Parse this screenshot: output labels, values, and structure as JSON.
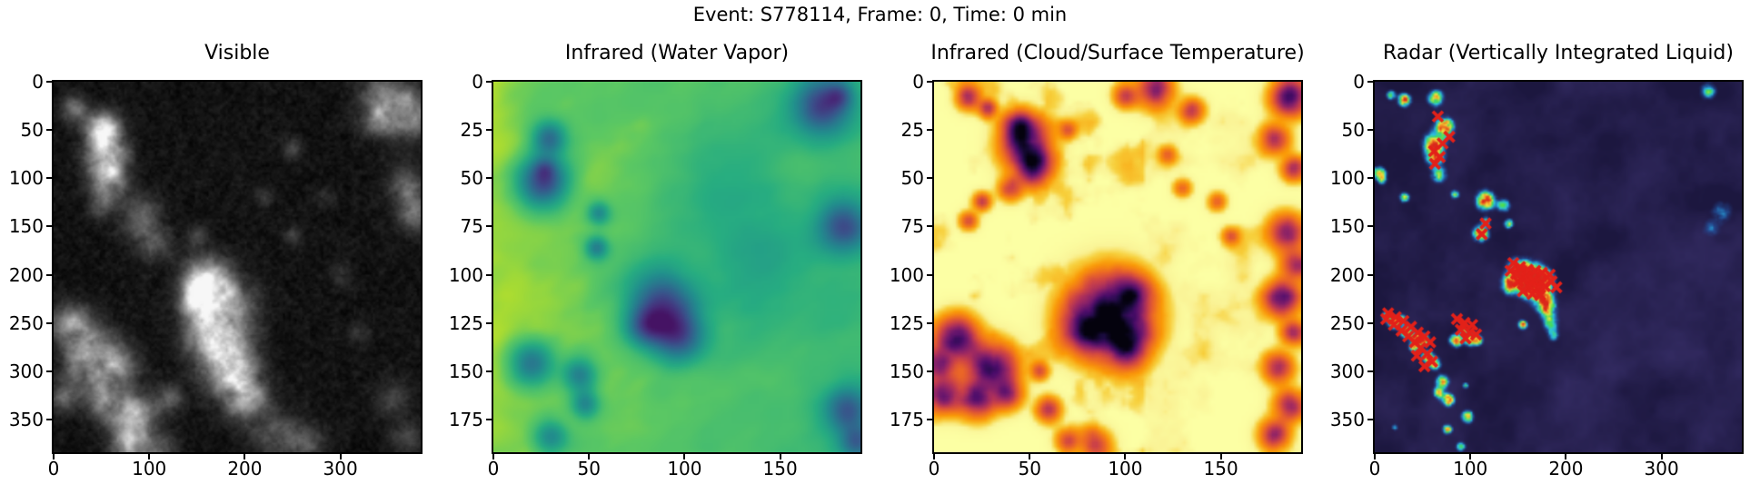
{
  "figure": {
    "suptitle": "Event: S778114, Frame: 0, Time: 0 min",
    "background_color": "#ffffff",
    "text_color": "#000000",
    "axis_color": "#000000"
  },
  "chart_data": [
    {
      "type": "heatmap",
      "title": "Visible",
      "colormap": "grayscale",
      "x_range": [
        0,
        384
      ],
      "y_range": [
        0,
        384
      ],
      "x_ticks": [
        0,
        100,
        200,
        300
      ],
      "y_ticks": [
        0,
        50,
        100,
        150,
        200,
        250,
        300,
        350
      ],
      "grid": false,
      "description": "dark visible-band satellite image with bright convective cloud clusters",
      "features": [
        [
          22,
          28,
          10,
          0.45
        ],
        [
          55,
          60,
          14,
          0.5
        ],
        [
          52,
          45,
          12,
          0.6
        ],
        [
          55,
          75,
          14,
          0.75
        ],
        [
          58,
          100,
          13,
          0.7
        ],
        [
          50,
          125,
          10,
          0.5
        ],
        [
          90,
          140,
          15,
          0.45
        ],
        [
          105,
          170,
          12,
          0.4
        ],
        [
          150,
          160,
          8,
          0.3
        ],
        [
          350,
          15,
          20,
          0.55
        ],
        [
          375,
          35,
          18,
          0.5
        ],
        [
          340,
          40,
          12,
          0.35
        ],
        [
          370,
          110,
          15,
          0.4
        ],
        [
          378,
          140,
          12,
          0.45
        ],
        [
          160,
          205,
          16,
          0.8
        ],
        [
          175,
          235,
          22,
          0.95
        ],
        [
          170,
          270,
          20,
          0.9
        ],
        [
          185,
          300,
          18,
          0.8
        ],
        [
          200,
          325,
          16,
          0.7
        ],
        [
          150,
          225,
          12,
          0.6
        ],
        [
          15,
          250,
          14,
          0.6
        ],
        [
          40,
          270,
          16,
          0.7
        ],
        [
          30,
          300,
          14,
          0.6
        ],
        [
          65,
          295,
          15,
          0.65
        ],
        [
          55,
          330,
          14,
          0.6
        ],
        [
          85,
          345,
          16,
          0.7
        ],
        [
          80,
          375,
          14,
          0.65
        ],
        [
          110,
          380,
          12,
          0.5
        ],
        [
          120,
          330,
          10,
          0.45
        ],
        [
          10,
          330,
          10,
          0.4
        ],
        [
          230,
          365,
          18,
          0.35
        ],
        [
          265,
          375,
          14,
          0.3
        ],
        [
          355,
          330,
          14,
          0.25
        ],
        [
          370,
          370,
          12,
          0.3
        ],
        [
          250,
          70,
          8,
          0.25
        ],
        [
          285,
          120,
          7,
          0.2
        ],
        [
          300,
          200,
          8,
          0.2
        ],
        [
          320,
          260,
          8,
          0.22
        ],
        [
          250,
          160,
          7,
          0.22
        ],
        [
          220,
          120,
          7,
          0.25
        ]
      ]
    },
    {
      "type": "heatmap",
      "title": "Infrared (Water Vapor)",
      "colormap": "viridis",
      "x_range": [
        0,
        192
      ],
      "y_range": [
        0,
        192
      ],
      "x_ticks": [
        0,
        50,
        100,
        150
      ],
      "y_ticks": [
        0,
        25,
        50,
        75,
        100,
        125,
        150,
        175
      ],
      "grid": false,
      "description": "green water-vapor field, drier yellow-green at left, dark blue moist cores",
      "features": [
        [
          29,
          29,
          6,
          0.45
        ],
        [
          26,
          52,
          9,
          0.62
        ],
        [
          27,
          45,
          4,
          0.2
        ],
        [
          55,
          68,
          4,
          0.33
        ],
        [
          54,
          86,
          4,
          0.38
        ],
        [
          172,
          13,
          10,
          0.55
        ],
        [
          181,
          7,
          5,
          0.28
        ],
        [
          183,
          75,
          9,
          0.5
        ],
        [
          88,
          115,
          12,
          0.58
        ],
        [
          97,
          132,
          9,
          0.5
        ],
        [
          80,
          127,
          7,
          0.38
        ],
        [
          20,
          146,
          8,
          0.45
        ],
        [
          45,
          152,
          6,
          0.4
        ],
        [
          48,
          167,
          5,
          0.35
        ],
        [
          30,
          184,
          6,
          0.33
        ],
        [
          185,
          170,
          8,
          0.45
        ],
        [
          190,
          187,
          6,
          0.4
        ],
        [
          140,
          100,
          20,
          0.12
        ],
        [
          120,
          60,
          25,
          0.1
        ]
      ]
    },
    {
      "type": "heatmap",
      "title": "Infrared (Cloud/Surface Temperature)",
      "colormap": "inferno_r",
      "x_range": [
        0,
        192
      ],
      "y_range": [
        0,
        192
      ],
      "x_ticks": [
        0,
        50,
        100,
        150
      ],
      "y_ticks": [
        0,
        25,
        50,
        75,
        100,
        125,
        150,
        175
      ],
      "grid": false,
      "description": "pale warm surface with orange ringed, dark purple cold cloud tops",
      "features": [
        [
          18,
          8,
          4,
          0.5
        ],
        [
          28,
          14,
          3,
          0.45
        ],
        [
          48,
          32,
          8,
          0.85
        ],
        [
          44,
          22,
          5,
          0.5
        ],
        [
          52,
          45,
          6,
          0.6
        ],
        [
          40,
          55,
          4,
          0.4
        ],
        [
          25,
          62,
          3,
          0.4
        ],
        [
          18,
          72,
          3,
          0.35
        ],
        [
          70,
          25,
          3,
          0.35
        ],
        [
          122,
          38,
          3,
          0.3
        ],
        [
          130,
          55,
          3,
          0.28
        ],
        [
          115,
          4,
          6,
          0.6
        ],
        [
          135,
          15,
          4,
          0.45
        ],
        [
          100,
          7,
          4,
          0.4
        ],
        [
          92,
          120,
          13,
          0.95
        ],
        [
          100,
          135,
          8,
          0.6
        ],
        [
          78,
          128,
          8,
          0.5
        ],
        [
          105,
          110,
          6,
          0.45
        ],
        [
          12,
          133,
          7,
          0.8
        ],
        [
          30,
          148,
          8,
          0.85
        ],
        [
          5,
          162,
          6,
          0.7
        ],
        [
          22,
          165,
          6,
          0.6
        ],
        [
          38,
          162,
          5,
          0.5
        ],
        [
          2,
          145,
          5,
          0.6
        ],
        [
          60,
          170,
          4,
          0.5
        ],
        [
          55,
          150,
          3,
          0.35
        ],
        [
          186,
          8,
          6,
          0.75
        ],
        [
          178,
          30,
          5,
          0.45
        ],
        [
          188,
          45,
          4,
          0.5
        ],
        [
          184,
          78,
          6,
          0.55
        ],
        [
          190,
          95,
          5,
          0.5
        ],
        [
          182,
          112,
          6,
          0.65
        ],
        [
          188,
          130,
          4,
          0.45
        ],
        [
          180,
          148,
          5,
          0.5
        ],
        [
          186,
          168,
          5,
          0.55
        ],
        [
          178,
          183,
          5,
          0.5
        ],
        [
          148,
          62,
          3,
          0.3
        ],
        [
          155,
          80,
          3,
          0.3
        ],
        [
          85,
          188,
          5,
          0.4
        ],
        [
          70,
          186,
          4,
          0.35
        ]
      ]
    },
    {
      "type": "heatmap",
      "title": "Radar (Vertically Integrated Liquid)",
      "colormap": "dark-purple background with blue-cyan-green-yellow-red radar echoes",
      "x_range": [
        0,
        384
      ],
      "y_range": [
        0,
        384
      ],
      "x_ticks": [
        0,
        100,
        200,
        300
      ],
      "y_ticks": [
        0,
        50,
        100,
        150,
        200,
        250,
        300,
        350
      ],
      "grid": false,
      "description": "vertically integrated liquid radar mosaic with storm cells marked by red x markers",
      "marker_symbol": "x",
      "marker_color": "#e32119",
      "echoes": [
        [
          17,
          14,
          3,
          0.55
        ],
        [
          31,
          19,
          4,
          0.9
        ],
        [
          64,
          17,
          5,
          0.75
        ],
        [
          73,
          47,
          6,
          1.0
        ],
        [
          62,
          65,
          7,
          0.85
        ],
        [
          63,
          78,
          6,
          0.65
        ],
        [
          67,
          96,
          5,
          0.55
        ],
        [
          5,
          95,
          4,
          0.8
        ],
        [
          8,
          102,
          3,
          0.5
        ],
        [
          31,
          120,
          3,
          0.7
        ],
        [
          84,
          117,
          3,
          0.5
        ],
        [
          116,
          123,
          6,
          1.0
        ],
        [
          135,
          128,
          4,
          0.6
        ],
        [
          111,
          157,
          5,
          0.95
        ],
        [
          140,
          147,
          3,
          0.6
        ],
        [
          116,
          145,
          3,
          0.5
        ],
        [
          349,
          10,
          5,
          0.45
        ],
        [
          363,
          135,
          7,
          0.25
        ],
        [
          352,
          152,
          6,
          0.2
        ],
        [
          150,
          196,
          7,
          0.9
        ],
        [
          163,
          200,
          8,
          1.0
        ],
        [
          175,
          205,
          7,
          0.9
        ],
        [
          143,
          210,
          6,
          1.0
        ],
        [
          160,
          215,
          6,
          0.85
        ],
        [
          175,
          222,
          7,
          0.95
        ],
        [
          180,
          235,
          6,
          0.7
        ],
        [
          184,
          250,
          5,
          0.5
        ],
        [
          187,
          262,
          4,
          0.4
        ],
        [
          155,
          252,
          3,
          0.8
        ],
        [
          20,
          250,
          4,
          0.8
        ],
        [
          33,
          259,
          4,
          0.9
        ],
        [
          43,
          267,
          4,
          0.7
        ],
        [
          50,
          268,
          4,
          0.9
        ],
        [
          28,
          246,
          3,
          0.6
        ],
        [
          55,
          285,
          4,
          0.7
        ],
        [
          62,
          292,
          4,
          0.8
        ],
        [
          41,
          275,
          3,
          0.7
        ],
        [
          12,
          243,
          3,
          0.6
        ],
        [
          85,
          268,
          4,
          0.9
        ],
        [
          100,
          267,
          4,
          0.9
        ],
        [
          108,
          268,
          3,
          0.8
        ],
        [
          93,
          258,
          3,
          0.5
        ],
        [
          71,
          310,
          4,
          0.8
        ],
        [
          68,
          322,
          4,
          0.7
        ],
        [
          77,
          330,
          4,
          0.9
        ],
        [
          95,
          315,
          2,
          0.5
        ],
        [
          97,
          347,
          4,
          0.7
        ],
        [
          76,
          360,
          3,
          0.8
        ],
        [
          21,
          358,
          2,
          0.4
        ],
        [
          90,
          378,
          3,
          0.5
        ]
      ],
      "storm_markers": [
        [
          66,
          36
        ],
        [
          78,
          57
        ],
        [
          62,
          72
        ],
        [
          68,
          78
        ],
        [
          63,
          85
        ],
        [
          71,
          64
        ],
        [
          116,
          147
        ],
        [
          112,
          158
        ],
        [
          145,
          188
        ],
        [
          152,
          192
        ],
        [
          160,
          195
        ],
        [
          168,
          196
        ],
        [
          175,
          198
        ],
        [
          183,
          200
        ],
        [
          158,
          203
        ],
        [
          166,
          206
        ],
        [
          174,
          208
        ],
        [
          150,
          207
        ],
        [
          162,
          212
        ],
        [
          170,
          214
        ],
        [
          178,
          212
        ],
        [
          155,
          217
        ],
        [
          165,
          220
        ],
        [
          173,
          221
        ],
        [
          142,
          196
        ],
        [
          185,
          207
        ],
        [
          190,
          213
        ],
        [
          148,
          199
        ],
        [
          14,
          240
        ],
        [
          22,
          244
        ],
        [
          30,
          248
        ],
        [
          20,
          252
        ],
        [
          38,
          254
        ],
        [
          28,
          258
        ],
        [
          45,
          260
        ],
        [
          35,
          264
        ],
        [
          52,
          264
        ],
        [
          42,
          270
        ],
        [
          58,
          270
        ],
        [
          48,
          276
        ],
        [
          55,
          282
        ],
        [
          44,
          284
        ],
        [
          60,
          290
        ],
        [
          52,
          295
        ],
        [
          12,
          246
        ],
        [
          86,
          246
        ],
        [
          94,
          250
        ],
        [
          102,
          252
        ],
        [
          90,
          257
        ],
        [
          99,
          260
        ],
        [
          106,
          262
        ],
        [
          95,
          266
        ]
      ]
    }
  ]
}
